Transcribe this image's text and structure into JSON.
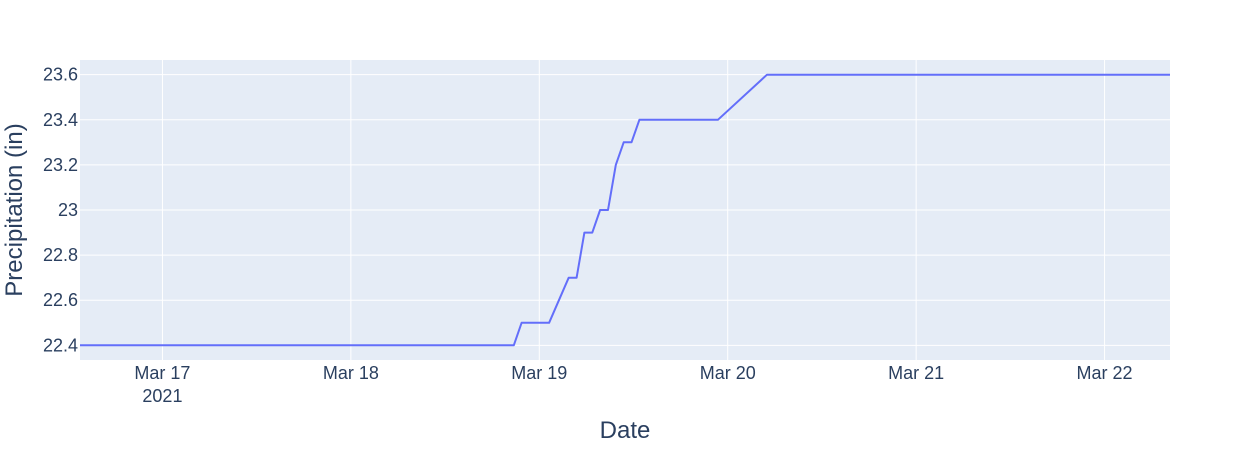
{
  "chart_data": {
    "type": "line",
    "title": "",
    "xlabel": "Date",
    "ylabel": "Precipitation (in)",
    "x_axis_type": "date",
    "xlim": [
      "2021-03-16T13:30",
      "2021-03-22T08:20"
    ],
    "ylim": [
      22.335,
      23.665
    ],
    "x_ticks": [
      {
        "value": "2021-03-17",
        "label": "Mar 17",
        "sublabel": "2021"
      },
      {
        "value": "2021-03-18",
        "label": "Mar 18",
        "sublabel": ""
      },
      {
        "value": "2021-03-19",
        "label": "Mar 19",
        "sublabel": ""
      },
      {
        "value": "2021-03-20",
        "label": "Mar 20",
        "sublabel": ""
      },
      {
        "value": "2021-03-21",
        "label": "Mar 21",
        "sublabel": ""
      },
      {
        "value": "2021-03-22",
        "label": "Mar 22",
        "sublabel": ""
      }
    ],
    "y_ticks": [
      {
        "value": 22.4,
        "label": "22.4"
      },
      {
        "value": 22.6,
        "label": "22.6"
      },
      {
        "value": 22.8,
        "label": "22.8"
      },
      {
        "value": 23.0,
        "label": "23"
      },
      {
        "value": 23.2,
        "label": "23.2"
      },
      {
        "value": 23.4,
        "label": "23.4"
      },
      {
        "value": 23.6,
        "label": "23.6"
      }
    ],
    "grid": true,
    "legend": false,
    "colors": {
      "line": "#636efa",
      "plot_bg": "#e5ecf6",
      "grid": "#ffffff",
      "text": "#2a3f5f"
    },
    "series": [
      {
        "x": [
          "2021-03-16T13:30",
          "2021-03-18T20:45",
          "2021-03-18T21:45",
          "2021-03-19T01:15",
          "2021-03-19T03:45",
          "2021-03-19T04:45",
          "2021-03-19T05:45",
          "2021-03-19T06:45",
          "2021-03-19T07:45",
          "2021-03-19T08:45",
          "2021-03-19T09:45",
          "2021-03-19T10:45",
          "2021-03-19T11:45",
          "2021-03-19T12:45",
          "2021-03-19T22:45",
          "2021-03-20T05:00",
          "2021-03-22T08:20"
        ],
        "y": [
          22.4,
          22.4,
          22.5,
          22.5,
          22.7,
          22.7,
          22.9,
          22.9,
          23.0,
          23.0,
          23.2,
          23.3,
          23.3,
          23.4,
          23.4,
          23.6,
          23.6
        ]
      }
    ]
  }
}
